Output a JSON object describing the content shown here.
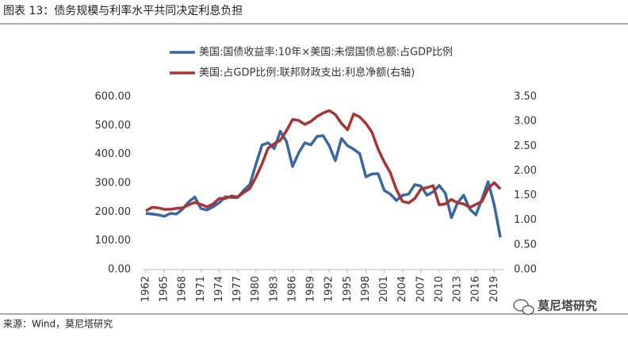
{
  "chart_data": {
    "type": "line",
    "title": "图表 13：债务规模与利率水平共同决定利息负担",
    "source": "来源：Wind，莫尼塔研究",
    "watermark": "莫尼塔研究",
    "x": [
      1962,
      1963,
      1964,
      1965,
      1966,
      1967,
      1968,
      1969,
      1970,
      1971,
      1972,
      1973,
      1974,
      1975,
      1976,
      1977,
      1978,
      1979,
      1980,
      1981,
      1982,
      1983,
      1984,
      1985,
      1986,
      1987,
      1988,
      1989,
      1990,
      1991,
      1992,
      1993,
      1994,
      1995,
      1996,
      1997,
      1998,
      1999,
      2000,
      2001,
      2002,
      2003,
      2004,
      2005,
      2006,
      2007,
      2008,
      2009,
      2010,
      2011,
      2012,
      2013,
      2014,
      2015,
      2016,
      2017,
      2018,
      2019,
      2020
    ],
    "xlim": [
      1962,
      2020
    ],
    "xticks": [
      1962,
      1965,
      1968,
      1971,
      1974,
      1977,
      1980,
      1983,
      1986,
      1989,
      1992,
      1995,
      1998,
      2001,
      2004,
      2007,
      2010,
      2013,
      2016,
      2019
    ],
    "ylim": [
      0,
      600
    ],
    "yticks": [
      {
        "value": 0,
        "label": "0.00"
      },
      {
        "value": 100,
        "label": "100.00"
      },
      {
        "value": 200,
        "label": "200.00"
      },
      {
        "value": 300,
        "label": "300.00"
      },
      {
        "value": 400,
        "label": "400.00"
      },
      {
        "value": 500,
        "label": "500.00"
      },
      {
        "value": 600,
        "label": "600.00"
      }
    ],
    "y2lim": [
      0,
      3.5
    ],
    "y2ticks": [
      {
        "value": 0,
        "label": "0.00"
      },
      {
        "value": 0.5,
        "label": "0.50"
      },
      {
        "value": 1,
        "label": "1.00"
      },
      {
        "value": 1.5,
        "label": "1.50"
      },
      {
        "value": 2,
        "label": "2.00"
      },
      {
        "value": 2.5,
        "label": "2.50"
      },
      {
        "value": 3,
        "label": "3.00"
      },
      {
        "value": 3.5,
        "label": "3.50"
      }
    ],
    "grid": false,
    "series": [
      {
        "name": "美国:国债收益率:10年×美国:未偿国债总额:占GDP比例",
        "color": "#3a67a3",
        "values": [
          195,
          193,
          190,
          185,
          195,
          193,
          210,
          235,
          252,
          212,
          207,
          218,
          232,
          253,
          250,
          250,
          275,
          295,
          365,
          432,
          440,
          420,
          480,
          445,
          358,
          405,
          440,
          433,
          462,
          465,
          430,
          378,
          455,
          430,
          418,
          402,
          322,
          332,
          333,
          275,
          262,
          240,
          258,
          262,
          295,
          290,
          258,
          270,
          292,
          265,
          180,
          232,
          258,
          210,
          190,
          245,
          305,
          225,
          112
        ]
      },
      {
        "name": "美国:占GDP比例:联邦财政支出:利息净额(右轴)",
        "color": "#a83434",
        "axis": "y2",
        "values": [
          1.19,
          1.26,
          1.25,
          1.22,
          1.22,
          1.24,
          1.25,
          1.31,
          1.36,
          1.32,
          1.27,
          1.33,
          1.44,
          1.44,
          1.49,
          1.47,
          1.56,
          1.64,
          1.87,
          2.14,
          2.46,
          2.55,
          2.62,
          2.81,
          3.04,
          3.02,
          2.94,
          3.0,
          3.1,
          3.17,
          3.22,
          3.14,
          2.96,
          2.83,
          3.15,
          3.09,
          2.96,
          2.78,
          2.44,
          2.18,
          1.96,
          1.62,
          1.38,
          1.35,
          1.44,
          1.63,
          1.66,
          1.7,
          1.31,
          1.33,
          1.42,
          1.35,
          1.33,
          1.26,
          1.32,
          1.38,
          1.64,
          1.76,
          1.63
        ]
      }
    ]
  }
}
